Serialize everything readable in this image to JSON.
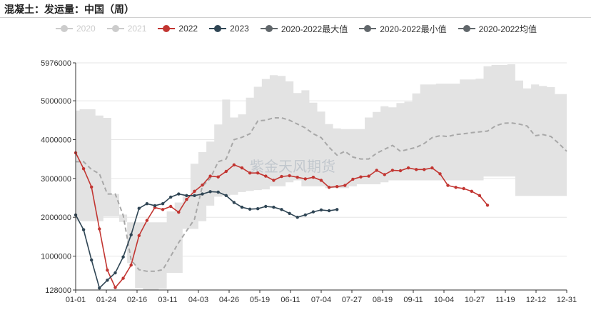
{
  "title": "混凝土：发运量：中国（周）",
  "watermark": "紫金天风期货",
  "colors": {
    "band": "#e3e3e3",
    "mean_line": "#a8a8a8",
    "s2022": "#c23531",
    "s2023": "#2f4554",
    "grid": "#e6e6e6",
    "axis": "#333333"
  },
  "legend": [
    {
      "label": "2020",
      "color": "#cccccc",
      "active": false
    },
    {
      "label": "2021",
      "color": "#cccccc",
      "active": false
    },
    {
      "label": "2022",
      "color": "#c23531",
      "active": true
    },
    {
      "label": "2023",
      "color": "#2f4554",
      "active": true
    },
    {
      "label": "2020-2022最大值",
      "color": "#61676b",
      "active": true
    },
    {
      "label": "2020-2022最小值",
      "color": "#61676b",
      "active": true
    },
    {
      "label": "2020-2022均值",
      "color": "#61676b",
      "active": true
    }
  ],
  "chart_data": {
    "type": "line",
    "title": "混凝土：发运量：中国（周）",
    "x_unit": "week",
    "x_tick_labels": [
      "01-01",
      "01-24",
      "02-16",
      "03-11",
      "04-03",
      "04-26",
      "05-19",
      "06-11",
      "07-04",
      "07-27",
      "08-19",
      "09-11",
      "10-04",
      "10-27",
      "11-19",
      "12-12",
      "12-31"
    ],
    "y_ticks": [
      128000,
      1000000,
      2000000,
      3000000,
      4000000,
      5000000,
      5976000
    ],
    "ylim": [
      128000,
      5976000
    ],
    "grid": true,
    "legend_position": "top-left",
    "band": {
      "max": [
        4750000,
        4780000,
        4780000,
        4620000,
        4560000,
        2600000,
        2070000,
        1870000,
        1870000,
        1870000,
        1870000,
        1870000,
        2150000,
        2380000,
        2540000,
        3380000,
        3680000,
        3950000,
        4390000,
        5030000,
        4570000,
        4650000,
        5080000,
        5360000,
        5560000,
        5660000,
        5640000,
        5500000,
        5200000,
        5270000,
        4950000,
        4720000,
        4400000,
        4290000,
        4270000,
        4270000,
        4270000,
        4570000,
        4710000,
        4860000,
        4830000,
        4940000,
        4980000,
        5190000,
        5420000,
        5420000,
        5440000,
        5440000,
        5440000,
        5550000,
        5550000,
        5570000,
        5890000,
        5920000,
        5920000,
        5940000,
        5520000,
        5320000,
        5420000,
        5380000,
        5350000,
        5170000,
        5170000
      ],
      "min": [
        1900000,
        1900000,
        1900000,
        1900000,
        2020000,
        2020000,
        1880000,
        820000,
        180000,
        128000,
        128000,
        160000,
        570000,
        570000,
        1700000,
        1700000,
        1900000,
        2300000,
        2530000,
        2550000,
        2580000,
        2650000,
        2680000,
        2700000,
        2720000,
        2800000,
        2800000,
        2900000,
        2950000,
        2800000,
        2800000,
        2800000,
        2750000,
        2750000,
        2750000,
        2800000,
        2850000,
        2850000,
        2850000,
        2900000,
        2950000,
        2950000,
        2950000,
        2950000,
        2950000,
        2950000,
        2950000,
        2950000,
        2950000,
        2950000,
        2950000,
        2950000,
        3050000,
        3050000,
        3050000,
        3050000,
        2550000,
        2550000,
        2550000,
        2550000,
        2550000,
        2550000,
        2550000
      ],
      "mean": [
        3430000,
        3430000,
        3230000,
        3120000,
        2600000,
        2600000,
        2050000,
        900000,
        650000,
        610000,
        610000,
        650000,
        1000000,
        1350000,
        1650000,
        1950000,
        2800000,
        3000000,
        3430000,
        3500000,
        4000000,
        4060000,
        4150000,
        4480000,
        4500000,
        4560000,
        4560000,
        4500000,
        4400000,
        4300000,
        4150000,
        4050000,
        3800000,
        3600000,
        3700000,
        3550000,
        3500000,
        3500000,
        3650000,
        3750000,
        3850000,
        3700000,
        3750000,
        3800000,
        3900000,
        4050000,
        4100000,
        4080000,
        4130000,
        4150000,
        4180000,
        4200000,
        4220000,
        4350000,
        4420000,
        4430000,
        4400000,
        4350000,
        4100000,
        4130000,
        4080000,
        3900000,
        3700000
      ]
    },
    "series": [
      {
        "name": "2022",
        "color": "#c23531",
        "x_start_week": 1,
        "values": [
          3660000,
          3250000,
          2780000,
          1700000,
          640000,
          190000,
          430000,
          770000,
          1530000,
          1920000,
          2250000,
          2200000,
          2280000,
          2130000,
          2460000,
          2670000,
          2830000,
          3060000,
          3040000,
          3180000,
          3350000,
          3270000,
          3140000,
          3140000,
          3060000,
          2950000,
          3050000,
          3070000,
          3030000,
          2990000,
          3030000,
          2950000,
          2770000,
          2790000,
          2820000,
          2980000,
          3040000,
          3060000,
          3210000,
          3100000,
          3210000,
          3200000,
          3270000,
          3230000,
          3230000,
          3270000,
          3120000,
          2820000,
          2770000,
          2740000,
          2670000,
          2560000,
          2310000
        ]
      },
      {
        "name": "2023",
        "color": "#2f4554",
        "x_start_week": 1,
        "values": [
          2060000,
          1680000,
          900000,
          180000,
          380000,
          570000,
          980000,
          1550000,
          2230000,
          2350000,
          2300000,
          2350000,
          2520000,
          2600000,
          2560000,
          2560000,
          2600000,
          2660000,
          2650000,
          2560000,
          2380000,
          2260000,
          2210000,
          2220000,
          2280000,
          2260000,
          2200000,
          2100000,
          2000000,
          2060000,
          2140000,
          2190000,
          2170000,
          2200000
        ]
      }
    ]
  }
}
